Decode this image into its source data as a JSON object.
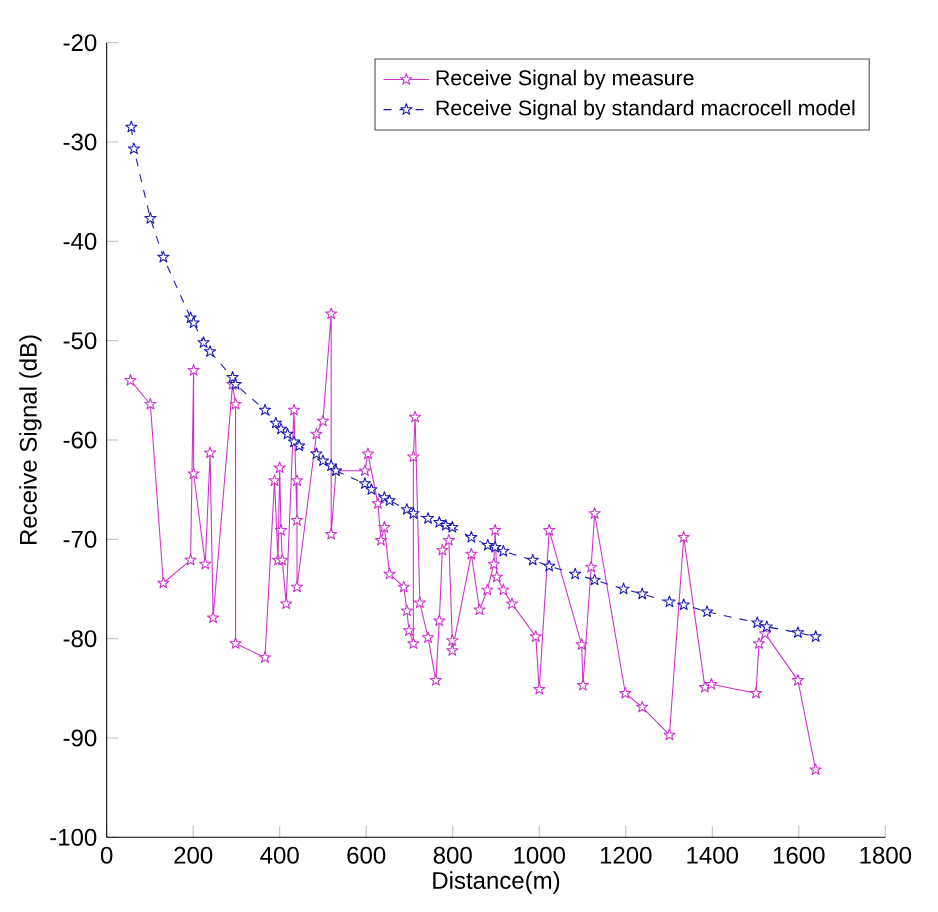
{
  "chart_data": {
    "type": "line",
    "xlabel": "Distance(m)",
    "ylabel": "Receive Signal (dB)",
    "xlim": [
      0,
      1800
    ],
    "ylim": [
      -100,
      -20
    ],
    "xticks": [
      0,
      200,
      400,
      600,
      800,
      1000,
      1200,
      1400,
      1600,
      1800
    ],
    "yticks": [
      -100,
      -90,
      -80,
      -70,
      -60,
      -50,
      -40,
      -30,
      -20
    ],
    "grid": false,
    "legend": "top right",
    "marker": "star",
    "series": [
      {
        "name": "Receive Signal by measure",
        "color": "#cc33cc",
        "line_style": "solid",
        "x": [
          55,
          101,
          131,
          194,
          201,
          201,
          228,
          239,
          246,
          291,
          298,
          298,
          366,
          388,
          396,
          400,
          403,
          406,
          415,
          433,
          440,
          440,
          440,
          485,
          500,
          519,
          519,
          530,
          597,
          604,
          627,
          634,
          642,
          654,
          687,
          694,
          699,
          709,
          709,
          713,
          724,
          743,
          761,
          769,
          776,
          791,
          799,
          799,
          843,
          862,
          880,
          895,
          898,
          902,
          917,
          937,
          992,
          1000,
          1023,
          1098,
          1101,
          1120,
          1128,
          1199,
          1238,
          1301,
          1334,
          1383,
          1398,
          1501,
          1508,
          1522,
          1598,
          1639
        ],
        "values": [
          -54,
          -56.4,
          -74.4,
          -72.1,
          -53,
          -63.4,
          -72.5,
          -61.3,
          -77.9,
          -54.4,
          -56.4,
          -80.5,
          -81.9,
          -64.1,
          -72.1,
          -62.8,
          -69.1,
          -72.1,
          -76.5,
          -57,
          -68.1,
          -64.1,
          -74.8,
          -59.4,
          -58.1,
          -47.3,
          -69.5,
          -63.1,
          -63.1,
          -61.4,
          -66.4,
          -70.1,
          -68.8,
          -73.5,
          -74.8,
          -77.2,
          -79.2,
          -80.5,
          -61.7,
          -57.7,
          -76.4,
          -79.9,
          -84.2,
          -78.2,
          -71.1,
          -70.1,
          -80.2,
          -81.2,
          -71.5,
          -77.1,
          -75.1,
          -72.5,
          -69.1,
          -73.8,
          -75.1,
          -76.5,
          -79.8,
          -85.1,
          -69.1,
          -80.6,
          -84.7,
          -72.8,
          -67.4,
          -85.5,
          -86.9,
          -89.7,
          -69.8,
          -84.9,
          -84.6,
          -85.5,
          -80.5,
          -79.5,
          -84.2,
          -93.2
        ]
      },
      {
        "name": "Receive Signal by standard macrocell model",
        "color": "#1a1ab0",
        "line_style": "dashed",
        "x": [
          57,
          63,
          101,
          131,
          194,
          201,
          224,
          239,
          291,
          298,
          366,
          391,
          403,
          418,
          433,
          445,
          485,
          500,
          519,
          530,
          597,
          612,
          642,
          654,
          694,
          709,
          743,
          769,
          784,
          799,
          843,
          881,
          898,
          917,
          985,
          1023,
          1083,
          1128,
          1195,
          1238,
          1301,
          1334,
          1388,
          1504,
          1526,
          1598,
          1639
        ],
        "values": [
          -28.5,
          -30.7,
          -37.7,
          -41.6,
          -47.7,
          -48.2,
          -50.2,
          -51.1,
          -53.7,
          -54.4,
          -57,
          -58.3,
          -58.9,
          -59.4,
          -60.2,
          -60.6,
          -61.4,
          -62.1,
          -62.6,
          -63.1,
          -64.4,
          -65,
          -65.8,
          -66.1,
          -67,
          -67.4,
          -67.9,
          -68.3,
          -68.6,
          -68.8,
          -69.8,
          -70.6,
          -70.8,
          -71.2,
          -72.1,
          -72.7,
          -73.5,
          -74.1,
          -75,
          -75.5,
          -76.3,
          -76.6,
          -77.3,
          -78.4,
          -78.8,
          -79.4,
          -79.8
        ]
      }
    ]
  }
}
